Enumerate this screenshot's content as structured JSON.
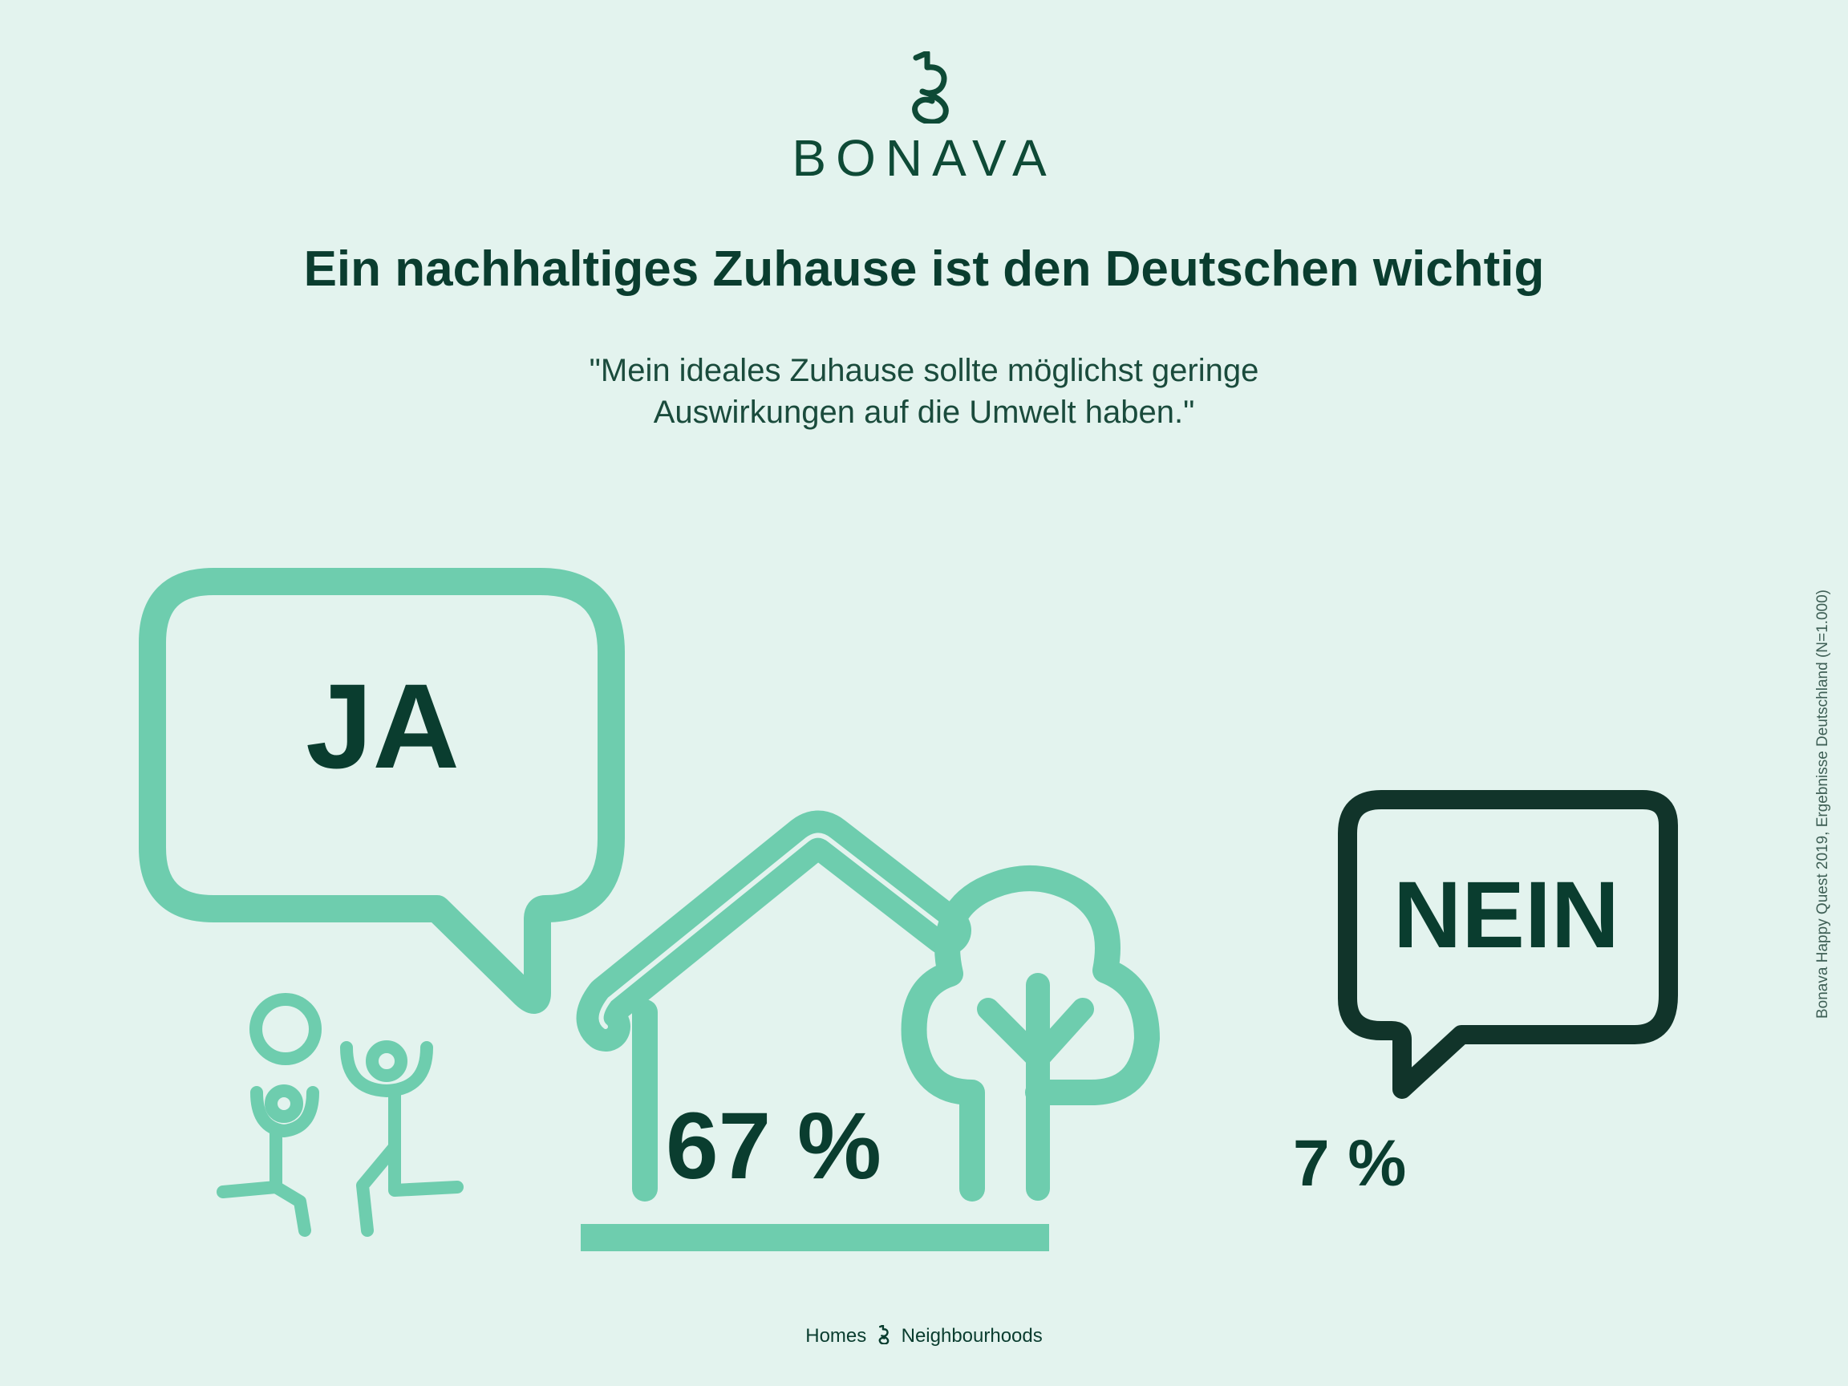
{
  "brand": {
    "name": "BONAVA",
    "logo": "bonava-b-mark"
  },
  "headline": "Ein nachhaltiges Zuhause ist den Deutschen wichtig",
  "quote": {
    "line1": "\"Mein ideales Zuhause sollte möglichst geringe",
    "line2": "Auswirkungen auf die Umwelt haben.\""
  },
  "answers": {
    "yes": {
      "label": "JA",
      "value_text": "67 %",
      "value": 67
    },
    "no": {
      "label": "NEIN",
      "value_text": "7 %",
      "value": 7
    }
  },
  "source_note": "Bonava Happy Quest 2019, Ergebnisse Deutschland (N=1.000)",
  "footer": {
    "text_left": "Homes",
    "text_right": "Neighbourhoods",
    "separator_icon": "bonava-b-icon"
  },
  "colors": {
    "background": "#e3f3ee",
    "accent_green": "#6ecdae",
    "dark_green": "#0a3d2f",
    "bubble_dark": "#11342a"
  },
  "icons": [
    "speech-bubble-icon",
    "house-icon",
    "tree-icon",
    "people-icon"
  ]
}
